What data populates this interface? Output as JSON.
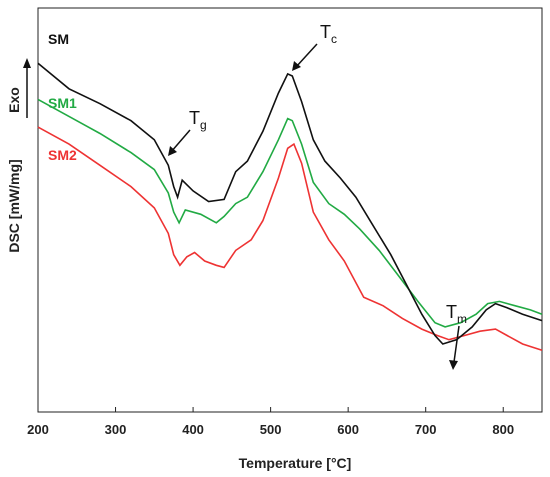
{
  "chart_data": {
    "type": "line",
    "xlabel": "Temperature [°C]",
    "ylabel": "DSC [mW/mg]",
    "exo_label": "Exo",
    "xlim": [
      200,
      850
    ],
    "x_ticks": [
      "200",
      "300",
      "400",
      "500",
      "600",
      "700",
      "800"
    ],
    "grid": false,
    "y_tick_labels": false,
    "series": [
      {
        "name": "SM",
        "color": "#111111",
        "points": [
          [
            200,
            5.4
          ],
          [
            240,
            4.2
          ],
          [
            280,
            3.5
          ],
          [
            320,
            2.7
          ],
          [
            350,
            1.8
          ],
          [
            368,
            0.6
          ],
          [
            375,
            -0.4
          ],
          [
            380,
            -0.9
          ],
          [
            386,
            -0.1
          ],
          [
            400,
            -0.6
          ],
          [
            420,
            -1.1
          ],
          [
            440,
            -1.0
          ],
          [
            455,
            0.3
          ],
          [
            470,
            0.8
          ],
          [
            490,
            2.2
          ],
          [
            510,
            4.0
          ],
          [
            522,
            4.9
          ],
          [
            528,
            4.8
          ],
          [
            540,
            3.6
          ],
          [
            555,
            1.8
          ],
          [
            570,
            0.8
          ],
          [
            590,
            0.0
          ],
          [
            610,
            -0.9
          ],
          [
            630,
            -2.1
          ],
          [
            655,
            -3.6
          ],
          [
            675,
            -5.0
          ],
          [
            695,
            -6.4
          ],
          [
            712,
            -7.4
          ],
          [
            722,
            -7.8
          ],
          [
            740,
            -7.6
          ],
          [
            760,
            -7.0
          ],
          [
            778,
            -6.2
          ],
          [
            790,
            -5.9
          ],
          [
            805,
            -6.1
          ],
          [
            825,
            -6.4
          ],
          [
            850,
            -6.7
          ]
        ]
      },
      {
        "name": "SM1",
        "color": "#22aa44",
        "points": [
          [
            200,
            3.7
          ],
          [
            240,
            2.9
          ],
          [
            280,
            2.1
          ],
          [
            320,
            1.2
          ],
          [
            350,
            0.4
          ],
          [
            368,
            -0.7
          ],
          [
            375,
            -1.6
          ],
          [
            382,
            -2.1
          ],
          [
            390,
            -1.5
          ],
          [
            410,
            -1.7
          ],
          [
            430,
            -2.1
          ],
          [
            440,
            -1.8
          ],
          [
            455,
            -1.2
          ],
          [
            470,
            -0.9
          ],
          [
            490,
            0.3
          ],
          [
            510,
            1.8
          ],
          [
            522,
            2.8
          ],
          [
            528,
            2.7
          ],
          [
            540,
            1.6
          ],
          [
            555,
            -0.2
          ],
          [
            575,
            -1.2
          ],
          [
            595,
            -1.7
          ],
          [
            615,
            -2.4
          ],
          [
            640,
            -3.4
          ],
          [
            665,
            -4.6
          ],
          [
            690,
            -5.8
          ],
          [
            712,
            -6.8
          ],
          [
            725,
            -7.0
          ],
          [
            745,
            -6.8
          ],
          [
            765,
            -6.4
          ],
          [
            780,
            -5.9
          ],
          [
            795,
            -5.8
          ],
          [
            815,
            -6.0
          ],
          [
            835,
            -6.2
          ],
          [
            850,
            -6.4
          ]
        ]
      },
      {
        "name": "SM2",
        "color": "#ee3333",
        "points": [
          [
            200,
            2.4
          ],
          [
            240,
            1.6
          ],
          [
            280,
            0.6
          ],
          [
            320,
            -0.4
          ],
          [
            350,
            -1.4
          ],
          [
            368,
            -2.6
          ],
          [
            375,
            -3.6
          ],
          [
            383,
            -4.1
          ],
          [
            392,
            -3.7
          ],
          [
            402,
            -3.5
          ],
          [
            415,
            -3.9
          ],
          [
            430,
            -4.1
          ],
          [
            440,
            -4.2
          ],
          [
            455,
            -3.4
          ],
          [
            475,
            -2.9
          ],
          [
            490,
            -2.0
          ],
          [
            510,
            0.0
          ],
          [
            522,
            1.4
          ],
          [
            530,
            1.6
          ],
          [
            540,
            0.7
          ],
          [
            555,
            -1.6
          ],
          [
            575,
            -2.9
          ],
          [
            595,
            -3.9
          ],
          [
            620,
            -5.6
          ],
          [
            645,
            -6.0
          ],
          [
            670,
            -6.6
          ],
          [
            695,
            -7.1
          ],
          [
            715,
            -7.4
          ],
          [
            730,
            -7.6
          ],
          [
            750,
            -7.4
          ],
          [
            770,
            -7.2
          ],
          [
            790,
            -7.1
          ],
          [
            805,
            -7.4
          ],
          [
            825,
            -7.8
          ],
          [
            850,
            -8.1
          ]
        ]
      }
    ],
    "annotations": [
      {
        "main": "T",
        "sub": "g"
      },
      {
        "main": "T",
        "sub": "c"
      },
      {
        "main": "T",
        "sub": "m"
      }
    ]
  }
}
